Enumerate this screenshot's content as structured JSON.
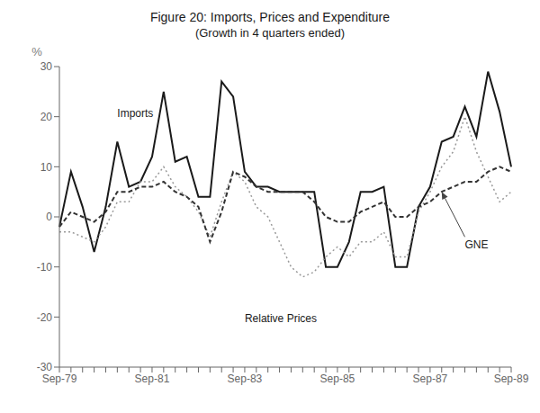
{
  "chart_data": {
    "type": "line",
    "title": "Figure 20: Imports, Prices and Expenditure",
    "subtitle": "(Growth in 4 quarters ended)",
    "y_label": "%",
    "categories": [
      "Sep-79",
      null,
      null,
      null,
      null,
      null,
      null,
      null,
      "Sep-81",
      null,
      null,
      null,
      null,
      null,
      null,
      null,
      "Sep-83",
      null,
      null,
      null,
      null,
      null,
      null,
      null,
      "Sep-85",
      null,
      null,
      null,
      null,
      null,
      null,
      null,
      "Sep-87",
      null,
      null,
      null,
      null,
      null,
      null,
      "Sep-89"
    ],
    "series": [
      {
        "name": "Imports",
        "color": "#1a1a1a",
        "line_style": "solid",
        "values": [
          -2,
          9,
          2,
          -7,
          2,
          15,
          6,
          7,
          12,
          25,
          11,
          12,
          4,
          4,
          27,
          24,
          9,
          6,
          6,
          5,
          5,
          5,
          5,
          -10,
          -10,
          -5,
          5,
          5,
          6,
          -10,
          -10,
          2,
          6,
          15,
          16,
          22,
          16,
          29,
          21,
          10
        ]
      },
      {
        "name": "Relative Prices",
        "color": "#999999",
        "line_style": "dotted",
        "values": [
          -3,
          -3,
          -4,
          -5,
          -2,
          3,
          3,
          7,
          7,
          10,
          6,
          4,
          1,
          -4,
          3,
          9,
          7,
          2,
          0,
          -5,
          -10,
          -12,
          -11,
          -8,
          -6,
          -8,
          -5,
          -5,
          -3,
          -8,
          -8,
          1,
          5,
          10,
          13,
          20,
          13,
          8,
          3,
          5
        ]
      },
      {
        "name": "GNE",
        "color": "#333333",
        "line_style": "dashed",
        "values": [
          -2,
          1,
          0,
          -1,
          1,
          5,
          5,
          6,
          6,
          7,
          5,
          4,
          2,
          -5,
          1,
          9,
          8,
          6,
          5,
          5,
          5,
          5,
          3,
          0,
          -1,
          -1,
          1,
          2,
          3,
          0,
          0,
          2,
          3,
          5,
          6,
          7,
          7,
          9,
          10,
          9
        ]
      }
    ],
    "annotations": [
      {
        "text": "Imports",
        "x": 5,
        "y": 20
      },
      {
        "text": "Relative Prices",
        "x": 16,
        "y": -21
      },
      {
        "text": "GNE",
        "x": 35,
        "y": -4,
        "arrow_to": [
          33,
          5
        ]
      }
    ],
    "ylim": [
      -30,
      30
    ],
    "yticks": [
      -30,
      -20,
      -10,
      0,
      10,
      20,
      30
    ],
    "grid": false
  }
}
